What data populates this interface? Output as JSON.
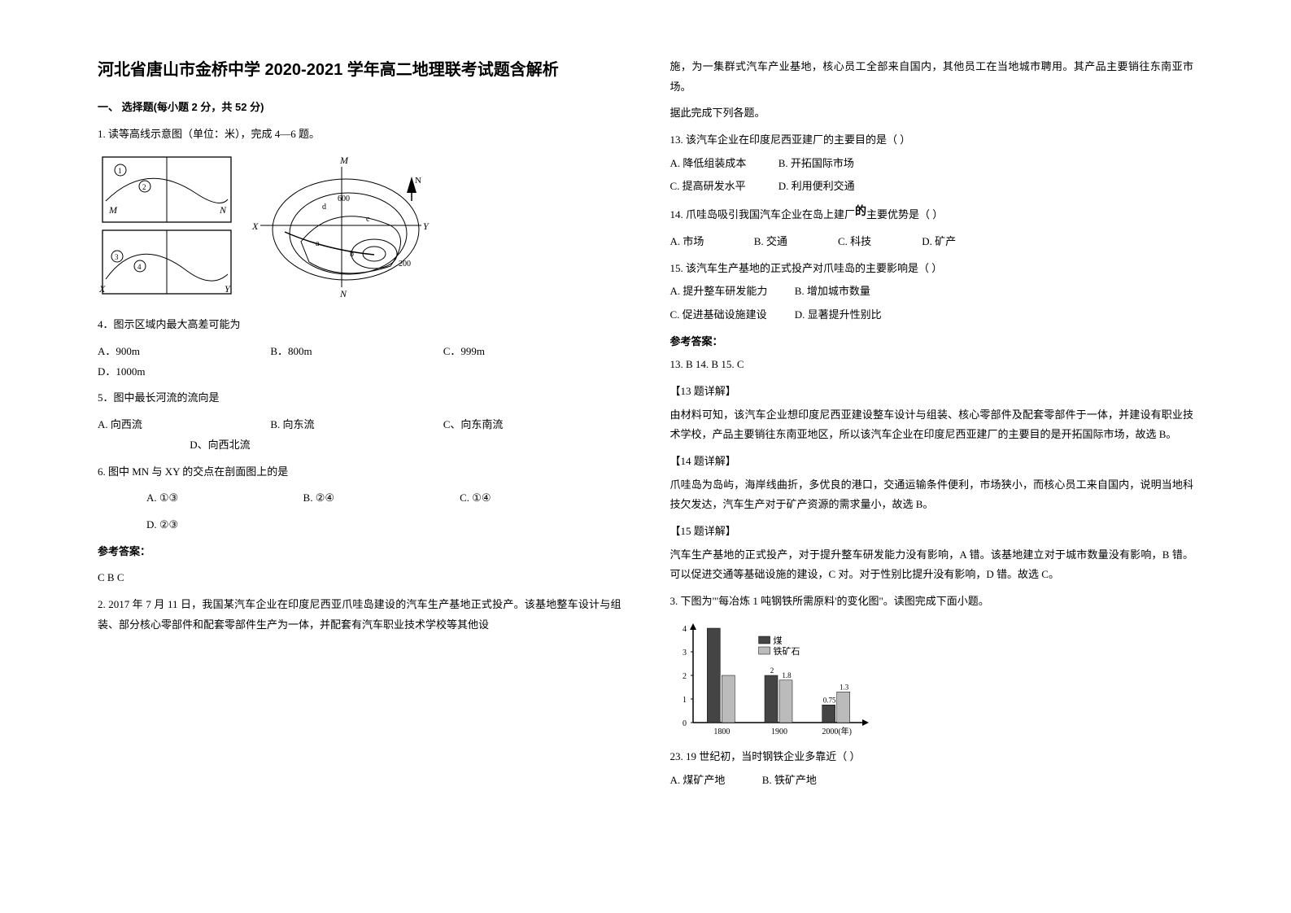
{
  "header": {
    "title": "河北省唐山市金桥中学 2020-2021 学年高二地理联考试题含解析"
  },
  "left": {
    "section1": "一、 选择题(每小题 2 分，共 52 分)",
    "q1_stem": "1. 读等高线示意图（单位：米），完成 4—6 题。",
    "q4": "4．图示区域内最大高差可能为",
    "q4a": "A．900m",
    "q4b": "B．800m",
    "q4c": "C．999m",
    "q4d": "D．1000m",
    "q5": "5．图中最长河流的流向是",
    "q5a": "A. 向西流",
    "q5b": "B. 向东流",
    "q5c": "C、向东南流",
    "q5d": "D、向西北流",
    "q6": "6. 图中 MN 与 XY 的交点在剖面图上的是",
    "q6a": "A. ①③",
    "q6b": "B. ②④",
    "q6c": "C. ①④",
    "q6d": "D. ②③",
    "answers_label": "参考答案：",
    "answers_1": "C B C",
    "q2_stem1": "2. 2017 年 7 月 11 日，我国某汽车企业在印度尼西亚爪哇岛建设的汽车生产基地正式投产。该基地整车设计与组装、部分核心零部件和配套零部件生产为一体，并配套有汽车职业技术学校等其他设"
  },
  "right": {
    "q2_stem2": "施，为一集群式汽车产业基地，核心员工全部来自国内，其他员工在当地城市聘用。其产品主要销往东南亚市场。",
    "q2_stem3": "据此完成下列各题。",
    "q13": "13. 该汽车企业在印度尼西亚建厂的主要目的是（   ）",
    "q13a": "A. 降低组装成本",
    "q13b": "B. 开拓国际市场",
    "q13c": "C. 提高研发水平",
    "q13d": "D. 利用便利交通",
    "q14_pre": "14.  爪哇岛吸引我国汽车企业在岛上建厂",
    "q14_call": "的",
    "q14_post": "主要优势是（   ）",
    "q14a": "A. 市场",
    "q14b": "B. 交通",
    "q14c": "C. 科技",
    "q14d": "D. 矿产",
    "q15": "15. 该汽车生产基地的正式投产对爪哇岛的主要影响是（   ）",
    "q15a": "A. 提升整车研发能力",
    "q15b": "B. 增加城市数量",
    "q15c": "C. 促进基础设施建设",
    "q15d": "D. 显著提升性别比",
    "answers_label": "参考答案：",
    "answers_r": "13. B      14. B      15. C",
    "exp13_h": "【13 题详解】",
    "exp13": "由材料可知，该汽车企业想印度尼西亚建设整车设计与组装、核心零部件及配套零部件于一体，并建设有职业技术学校，产品主要销往东南亚地区，所以该汽车企业在印度尼西亚建厂的主要目的是开拓国际市场，故选 B。",
    "exp14_h": "【14 题详解】",
    "exp14": "爪哇岛为岛屿，海岸线曲折，多优良的港口，交通运输条件便利，市场狭小，而核心员工来自国内，说明当地科技欠发达，汽车生产对于矿产资源的需求量小，故选 B。",
    "exp15_h": "【15 题详解】",
    "exp15": "汽车生产基地的正式投产，对于提升整车研发能力没有影响，A 错。该基地建立对于城市数量没有影响，B 错。可以促进交通等基础设施的建设，C 对。对于性别比提升没有影响，D 错。故选 C。",
    "q3_stem": "3. 下图为\"'每冶炼 1 吨钢铁所需原料'的变化图\"。读图完成下面小题。",
    "q23": "23. 19 世纪初，当时钢铁企业多靠近（       ）",
    "q23a": "A. 煤矿产地",
    "q23b": "B. 铁矿产地",
    "chart": {
      "type": "bar",
      "x_labels": [
        "1800",
        "1900",
        "2000(年)"
      ],
      "series": [
        {
          "name": "煤",
          "color": "#444444",
          "values": [
            4,
            2,
            0.75
          ]
        },
        {
          "name": "铁矿石",
          "color": "#bbbbbb",
          "values": [
            2,
            1.8,
            1.3
          ]
        }
      ],
      "ylim": [
        0,
        4
      ],
      "ytick_step": 1,
      "value_labels": {
        "1900_coal": "2",
        "1900_iron": "1.8",
        "2000_coal": "0.75",
        "2000_iron": "1.3"
      },
      "legend": [
        "煤",
        "铁矿石"
      ],
      "axis_color": "#000000",
      "bg": "#ffffff"
    }
  },
  "colors": {
    "text": "#000000",
    "bg": "#ffffff"
  }
}
